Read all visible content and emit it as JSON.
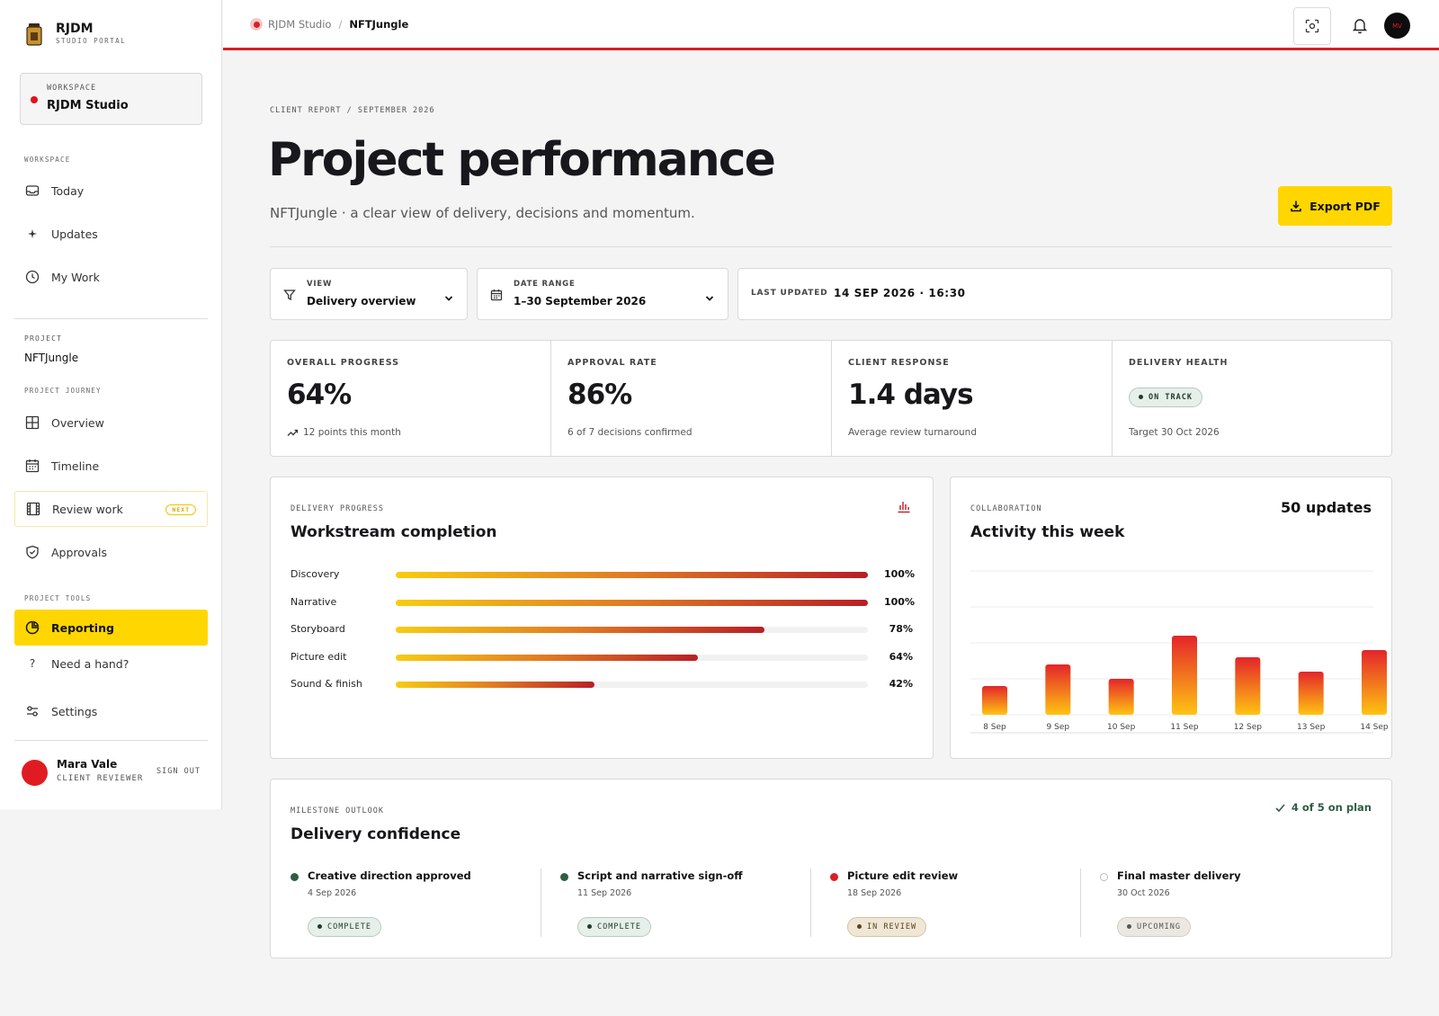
{
  "brand": {
    "name": "RJDM",
    "subtitle": "STUDIO PORTAL"
  },
  "workspace": {
    "label": "WORKSPACE",
    "name": "RJDM Studio"
  },
  "sidebar": {
    "section_workspace": "WORKSPACE",
    "workspace_items": [
      {
        "label": "Today",
        "icon": "inbox-icon"
      },
      {
        "label": "Updates",
        "icon": "sparkle-icon"
      },
      {
        "label": "My Work",
        "icon": "clock-icon"
      }
    ],
    "project_label": "PROJECT",
    "project_name": "NFTJungle",
    "section_journey": "PROJECT JOURNEY",
    "journey_items": [
      {
        "label": "Overview",
        "icon": "grid-icon"
      },
      {
        "label": "Timeline",
        "icon": "calendar-icon"
      },
      {
        "label": "Review work",
        "icon": "film-icon",
        "badge": "NEXT"
      },
      {
        "label": "Approvals",
        "icon": "shield-check-icon"
      }
    ],
    "section_tools": "PROJECT TOOLS",
    "tools_items": [
      {
        "label": "Reporting",
        "icon": "pie-chart-icon",
        "active": true
      },
      {
        "label": "Need a hand?",
        "icon": "question-icon"
      },
      {
        "label": "Settings",
        "icon": "sliders-icon"
      }
    ]
  },
  "user": {
    "name": "Mara Vale",
    "role": "CLIENT REVIEWER",
    "signout": "SIGN OUT"
  },
  "topbar": {
    "crumb_root": "RJDM Studio",
    "crumb_sep": "/",
    "crumb_current": "NFTJungle",
    "avatar_initials": "MV"
  },
  "header": {
    "eyebrow": "CLIENT REPORT / SEPTEMBER 2026",
    "title": "Project performance",
    "subtitle": "NFTJungle · a clear view of delivery, decisions and momentum.",
    "export_label": "Export PDF"
  },
  "filters": {
    "view_label": "VIEW",
    "view_value": "Delivery overview",
    "range_label": "DATE RANGE",
    "range_value": "1–30 September 2026",
    "updated_label": "LAST UPDATED",
    "updated_value": "14 SEP 2026 · 16:30"
  },
  "stats": [
    {
      "label": "OVERALL PROGRESS",
      "value": "64%",
      "note": "12 points this month"
    },
    {
      "label": "APPROVAL RATE",
      "value": "86%",
      "note": "6 of 7 decisions confirmed"
    },
    {
      "label": "CLIENT RESPONSE",
      "value": "1.4 days",
      "note": "Average review turnaround"
    },
    {
      "label": "DELIVERY HEALTH",
      "status": "ON TRACK",
      "note": "Target 30 Oct 2026"
    }
  ],
  "workstreams": {
    "eyebrow": "DELIVERY PROGRESS",
    "title": "Workstream completion",
    "rows": [
      {
        "name": "Discovery",
        "progress": 100,
        "pct": "100%"
      },
      {
        "name": "Narrative",
        "progress": 100,
        "pct": "100%"
      },
      {
        "name": "Storyboard",
        "progress": 78,
        "pct": "78%"
      },
      {
        "name": "Picture edit",
        "progress": 64,
        "pct": "64%"
      },
      {
        "name": "Sound & finish",
        "progress": 42,
        "pct": "42%"
      }
    ]
  },
  "activity": {
    "eyebrow": "COLLABORATION",
    "title": "Activity this week",
    "count": "50 updates"
  },
  "chart_data": {
    "type": "bar",
    "categories": [
      "8 Sep",
      "9 Sep",
      "10 Sep",
      "11 Sep",
      "12 Sep",
      "13 Sep",
      "14 Sep"
    ],
    "values": [
      4,
      7,
      5,
      11,
      8,
      6,
      9
    ],
    "ylim": [
      0,
      20
    ],
    "grid": true,
    "colors": {
      "top": "#e3252a",
      "bottom": "#ffc412"
    }
  },
  "milestones": {
    "eyebrow": "MILESTONE OUTLOOK",
    "title": "Delivery confidence",
    "summary": "4 of 5 on plan",
    "items": [
      {
        "title": "Creative direction approved",
        "date": "4 Sep 2026",
        "status": "COMPLETE",
        "tone": "green",
        "dot": "#2f5e43"
      },
      {
        "title": "Script and narrative sign-off",
        "date": "11 Sep 2026",
        "status": "COMPLETE",
        "tone": "green",
        "dot": "#2f5e43"
      },
      {
        "title": "Picture edit review",
        "date": "18 Sep 2026",
        "status": "IN REVIEW",
        "tone": "amber",
        "dot": "#d81f26"
      },
      {
        "title": "Final master delivery",
        "date": "30 Oct 2026",
        "status": "UPCOMING",
        "tone": "gray",
        "dot": "none"
      }
    ]
  }
}
